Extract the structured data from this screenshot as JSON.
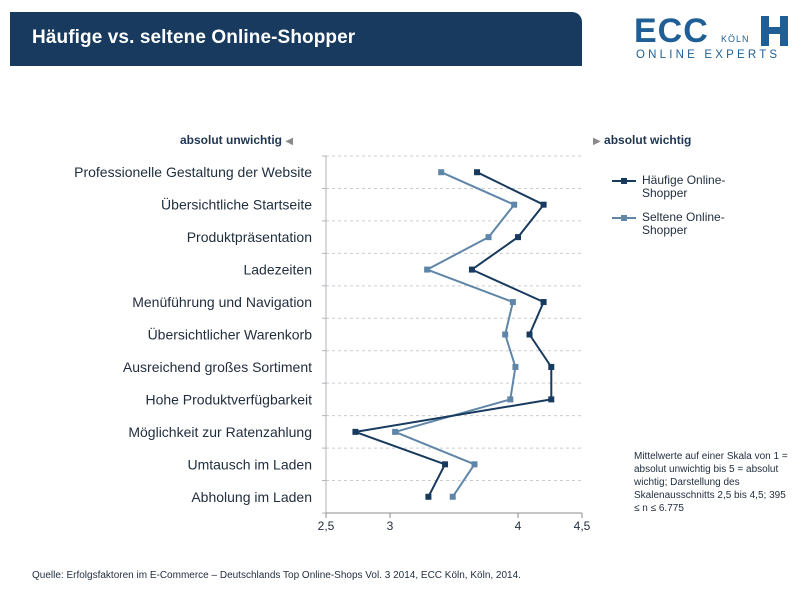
{
  "header": {
    "title": "Häufige vs. seltene Online-Shopper"
  },
  "logo": {
    "name": "ECC",
    "city": "KÖLN",
    "tagline": "ONLINE EXPERTS"
  },
  "scale": {
    "left_label": "absolut unwichtig",
    "right_label": "absolut wichtig"
  },
  "note": "Mittelwerte auf einer Skala von 1 = absolut unwichtig bis 5 = absolut wichtig; Darstellung des Skalenausschnitts 2,5 bis 4,5; 395 ≤ n ≤ 6.775",
  "source": "Quelle: Erfolgsfaktoren im E-Commerce – Deutschlands Top Online-Shops Vol. 3 2014, ECC Köln, Köln, 2014.",
  "chart_data": {
    "type": "line",
    "orientation": "horizontal",
    "categories": [
      "Professionelle Gestaltung der Website",
      "Übersichtliche Startseite",
      "Produktpräsentation",
      "Ladezeiten",
      "Menüführung und Navigation",
      "Übersichtlicher Warenkorb",
      "Ausreichend großes Sortiment",
      "Hohe Produktverfügbarkeit",
      "Möglichkeit zur Ratenzahlung",
      "Umtausch im Laden",
      "Abholung im Laden"
    ],
    "series": [
      {
        "name": "Häufige Online-Shopper",
        "color": "#173a5e",
        "values": [
          3.68,
          4.2,
          4.0,
          3.64,
          4.2,
          4.09,
          4.26,
          4.26,
          2.73,
          3.43,
          3.3
        ]
      },
      {
        "name": "Seltene Online-Shopper",
        "color": "#5f86a8",
        "values": [
          3.4,
          3.97,
          3.77,
          3.29,
          3.96,
          3.9,
          3.98,
          3.94,
          3.04,
          3.66,
          3.49
        ]
      }
    ],
    "xlim": [
      2.5,
      4.5
    ],
    "xticks": [
      2.5,
      3,
      4,
      4.5
    ],
    "xtick_labels": [
      "2,5",
      "3",
      "4",
      "4,5"
    ],
    "grid": "horizontal dashed",
    "legend": "right"
  }
}
